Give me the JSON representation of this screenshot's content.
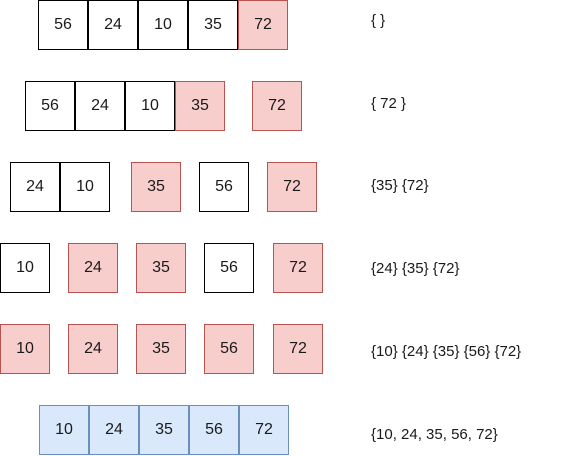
{
  "colors": {
    "unsorted_fill": "#ffffff",
    "unsorted_border": "#000000",
    "sorted_fill": "#f8cecc",
    "sorted_border": "#b85450",
    "final_fill": "#dae8fc",
    "final_border": "#6c8ebf"
  },
  "steps": [
    {
      "cells": [
        {
          "value": "56",
          "state": "unsorted"
        },
        {
          "value": "24",
          "state": "unsorted"
        },
        {
          "value": "10",
          "state": "unsorted"
        },
        {
          "value": "35",
          "state": "unsorted"
        },
        {
          "value": "72",
          "state": "sorted"
        }
      ],
      "set_label": "{ }"
    },
    {
      "cells": [
        {
          "value": "56",
          "state": "unsorted"
        },
        {
          "value": "24",
          "state": "unsorted"
        },
        {
          "value": "10",
          "state": "unsorted"
        },
        {
          "value": "35",
          "state": "sorted"
        },
        {
          "value": "72",
          "state": "sorted"
        }
      ],
      "set_label": "{ 72 }"
    },
    {
      "cells": [
        {
          "value": "24",
          "state": "unsorted"
        },
        {
          "value": "10",
          "state": "unsorted"
        },
        {
          "value": "35",
          "state": "sorted"
        },
        {
          "value": "56",
          "state": "unsorted"
        },
        {
          "value": "72",
          "state": "sorted"
        }
      ],
      "set_label": "{35} {72}"
    },
    {
      "cells": [
        {
          "value": "10",
          "state": "unsorted"
        },
        {
          "value": "24",
          "state": "sorted"
        },
        {
          "value": "35",
          "state": "sorted"
        },
        {
          "value": "56",
          "state": "unsorted"
        },
        {
          "value": "72",
          "state": "sorted"
        }
      ],
      "set_label": "{24} {35} {72}"
    },
    {
      "cells": [
        {
          "value": "10",
          "state": "sorted"
        },
        {
          "value": "24",
          "state": "sorted"
        },
        {
          "value": "35",
          "state": "sorted"
        },
        {
          "value": "56",
          "state": "sorted"
        },
        {
          "value": "72",
          "state": "sorted"
        }
      ],
      "set_label": "{10} {24} {35} {56} {72}"
    },
    {
      "cells": [
        {
          "value": "10",
          "state": "final"
        },
        {
          "value": "24",
          "state": "final"
        },
        {
          "value": "35",
          "state": "final"
        },
        {
          "value": "56",
          "state": "final"
        },
        {
          "value": "72",
          "state": "final"
        }
      ],
      "set_label": "{10, 24, 35, 56, 72}"
    }
  ]
}
